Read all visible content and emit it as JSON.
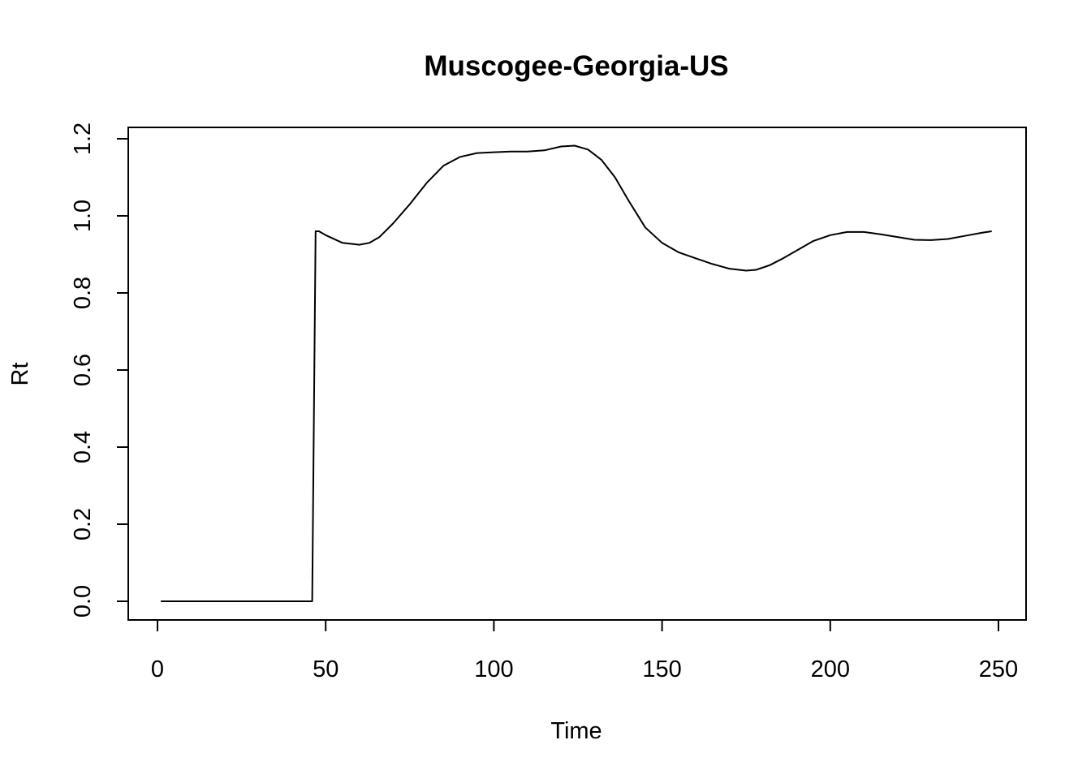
{
  "chart_data": {
    "type": "line",
    "title": "Muscogee-Georgia-US",
    "xlabel": "Time",
    "ylabel": "Rt",
    "xlim": [
      0,
      250
    ],
    "ylim": [
      0.0,
      1.2
    ],
    "xticks": [
      0,
      50,
      100,
      150,
      200,
      250
    ],
    "yticks": [
      0.0,
      0.2,
      0.4,
      0.6,
      0.8,
      1.0,
      1.2
    ],
    "xtick_labels": [
      "0",
      "50",
      "100",
      "150",
      "200",
      "250"
    ],
    "ytick_labels": [
      "0.0",
      "0.2",
      "0.4",
      "0.6",
      "0.8",
      "1.0",
      "1.2"
    ],
    "grid": false,
    "series": [
      {
        "x": [
          1,
          10,
          20,
          30,
          40,
          46,
          47,
          48,
          50,
          55,
          60,
          63,
          66,
          70,
          75,
          80,
          85,
          90,
          95,
          100,
          105,
          110,
          115,
          120,
          124,
          128,
          132,
          136,
          140,
          145,
          150,
          155,
          160,
          165,
          170,
          175,
          178,
          182,
          186,
          190,
          195,
          200,
          205,
          210,
          215,
          220,
          225,
          230,
          235,
          240,
          245,
          248
        ],
        "y": [
          0,
          0,
          0,
          0,
          0,
          0,
          0.96,
          0.96,
          0.95,
          0.93,
          0.925,
          0.93,
          0.945,
          0.98,
          1.03,
          1.085,
          1.13,
          1.153,
          1.163,
          1.165,
          1.167,
          1.167,
          1.17,
          1.18,
          1.182,
          1.172,
          1.145,
          1.1,
          1.04,
          0.97,
          0.93,
          0.905,
          0.89,
          0.875,
          0.863,
          0.858,
          0.86,
          0.872,
          0.89,
          0.91,
          0.935,
          0.95,
          0.958,
          0.958,
          0.952,
          0.945,
          0.938,
          0.937,
          0.94,
          0.948,
          0.956,
          0.96
        ]
      }
    ]
  }
}
